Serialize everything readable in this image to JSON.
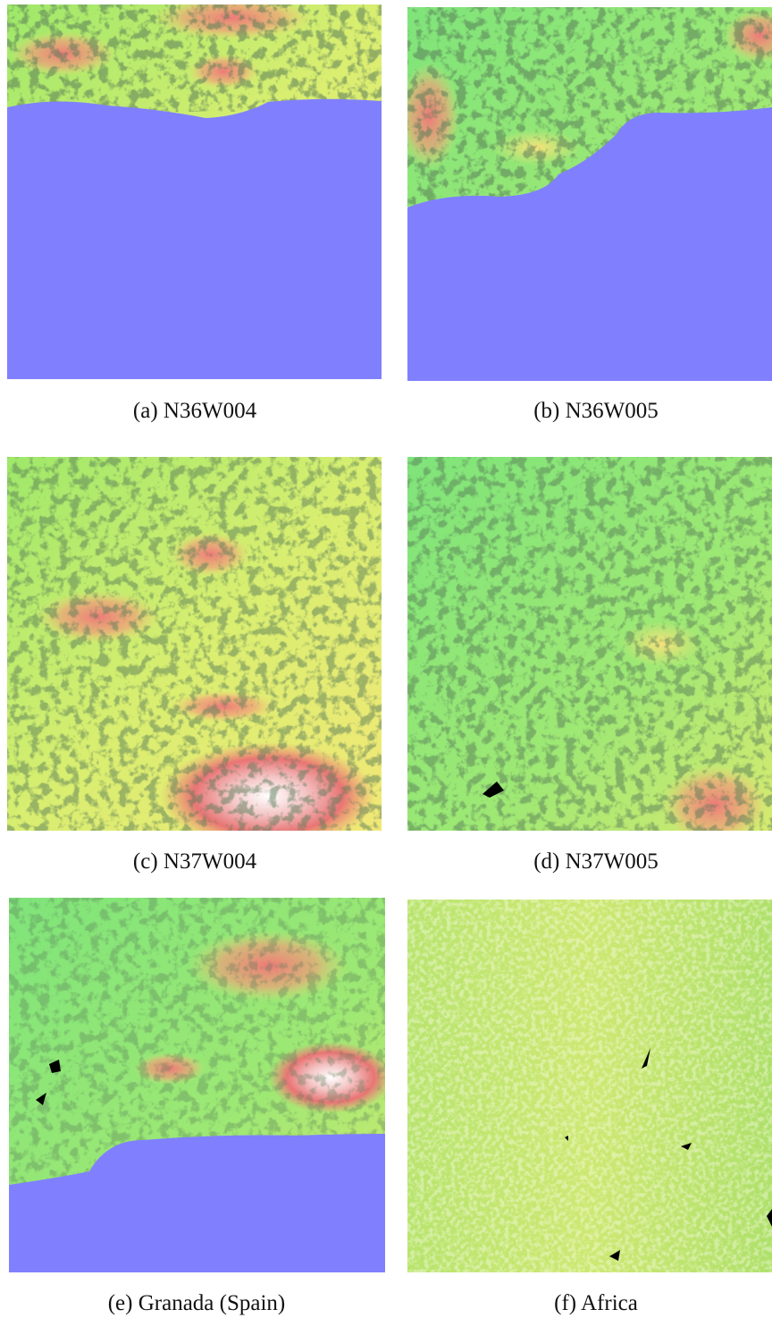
{
  "figure": {
    "panels": [
      {
        "label": "(a)",
        "caption": "N36W004"
      },
      {
        "label": "(b)",
        "caption": "N36W005"
      },
      {
        "label": "(c)",
        "caption": "N37W004"
      },
      {
        "label": "(d)",
        "caption": "N37W005"
      },
      {
        "label": "(e)",
        "caption": "Granada (Spain)"
      },
      {
        "label": "(f)",
        "caption": "Africa"
      }
    ]
  }
}
